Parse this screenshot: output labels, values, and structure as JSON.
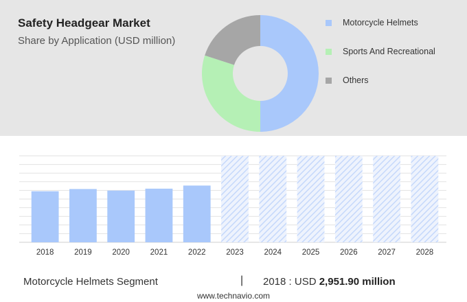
{
  "header": {
    "title": "Safety Headgear Market",
    "subtitle": "Share by Application (USD million)"
  },
  "footer": {
    "segment_label": "Motorcycle Helmets Segment",
    "separator": "|",
    "year_prefix": "2018 : USD ",
    "value": "2,951.90 million",
    "source": "www.technavio.com"
  },
  "chart_data": [
    {
      "type": "pie",
      "variant": "donut",
      "categories": [
        "Motorcycle Helmets",
        "Sports And Recreational",
        "Others"
      ],
      "values": [
        50,
        30,
        20
      ],
      "colors": [
        "#a9c8fb",
        "#b5f0b5",
        "#a6a6a6"
      ],
      "legend_position": "right"
    },
    {
      "type": "bar",
      "categories": [
        "2018",
        "2019",
        "2020",
        "2021",
        "2022",
        "2023",
        "2024",
        "2025",
        "2026",
        "2027",
        "2028"
      ],
      "values": [
        2951.9,
        3080,
        2990,
        3100,
        3280,
        null,
        null,
        null,
        null,
        null,
        null
      ],
      "forecast_categories": [
        "2023",
        "2024",
        "2025",
        "2026",
        "2027",
        "2028"
      ],
      "ylim": [
        0,
        5000
      ],
      "grid": true,
      "colors": {
        "actual": "#a9c8fb",
        "forecast": "#c5d8fb"
      }
    }
  ]
}
